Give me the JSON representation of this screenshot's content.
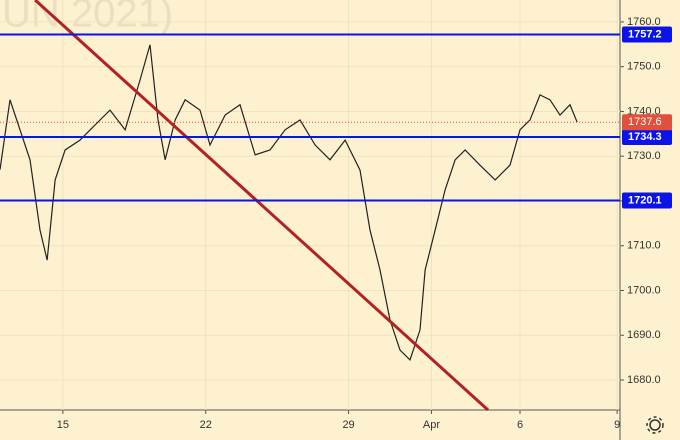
{
  "chart_data": {
    "type": "line",
    "watermark": "UN 2021)",
    "x": [
      0,
      0.35,
      0.7,
      1.05,
      1.4,
      1.65,
      1.93,
      2.28,
      2.8,
      3.33,
      3.85,
      4.38,
      4.9,
      5.25,
      5.53,
      5.78,
      6.13,
      6.48,
      7.0,
      7.35,
      7.88,
      8.4,
      8.93,
      9.45,
      9.98,
      10.5,
      11.03,
      11.55,
      12.08,
      12.6,
      12.95,
      13.3,
      13.65,
      14.0,
      14.35,
      14.7,
      14.88,
      15.23,
      15.58,
      15.93,
      16.28,
      16.8,
      17.33,
      17.85,
      18.2,
      18.55,
      18.9,
      19.25,
      19.6,
      19.95,
      20.2
    ],
    "values": [
      1727,
      1742.6,
      1735.9,
      1729.2,
      1713.5,
      1706.8,
      1724.7,
      1731.4,
      1733.6,
      1737,
      1740.3,
      1735.9,
      1747,
      1754.9,
      1738.1,
      1729.2,
      1738.1,
      1742.6,
      1740.3,
      1732.5,
      1739.2,
      1741.5,
      1730.3,
      1731.4,
      1735.9,
      1738.1,
      1732.5,
      1729.2,
      1733.6,
      1726.9,
      1713.5,
      1704.6,
      1693.4,
      1686.7,
      1684.5,
      1691.2,
      1704.6,
      1713.5,
      1722.5,
      1729.2,
      1731.4,
      1728,
      1724.7,
      1728,
      1735.9,
      1738.1,
      1743.7,
      1742.6,
      1739.2,
      1741.5,
      1737.6
    ],
    "color": "#222222",
    "xlim": [
      0,
      21.7
    ],
    "xticks": [
      {
        "value": 2.2,
        "label": "15"
      },
      {
        "value": 7.2,
        "label": "22"
      },
      {
        "value": 12.2,
        "label": "29"
      },
      {
        "value": 15.1,
        "label": "Apr"
      },
      {
        "value": 18.2,
        "label": "6"
      },
      {
        "value": 21.6,
        "label": "9"
      }
    ],
    "ylim": [
      1673.3,
      1764.9
    ],
    "yticks": [
      {
        "value": 1680,
        "label": "1680.0"
      },
      {
        "value": 1690,
        "label": "1690.0"
      },
      {
        "value": 1700,
        "label": "1700.0"
      },
      {
        "value": 1710,
        "label": "1710.0"
      },
      {
        "value": 1720,
        "label": "1720.0"
      },
      {
        "value": 1730,
        "label": "1730.0"
      },
      {
        "value": 1740,
        "label": "1740.0"
      },
      {
        "value": 1750,
        "label": "1750.0"
      },
      {
        "value": 1760,
        "label": "1760.0"
      }
    ],
    "levels": [
      {
        "value": 1757.2,
        "color": "#0a14e6"
      },
      {
        "value": 1734.3,
        "color": "#0a14e6"
      },
      {
        "value": 1720.1,
        "color": "#0a14e6"
      }
    ],
    "last": {
      "value": 1737.6,
      "color": "#e0503c"
    },
    "trendline": {
      "x": [
        1.23,
        17.08
      ],
      "values": [
        1764.9,
        1673.3
      ],
      "color": "#b22222"
    }
  }
}
